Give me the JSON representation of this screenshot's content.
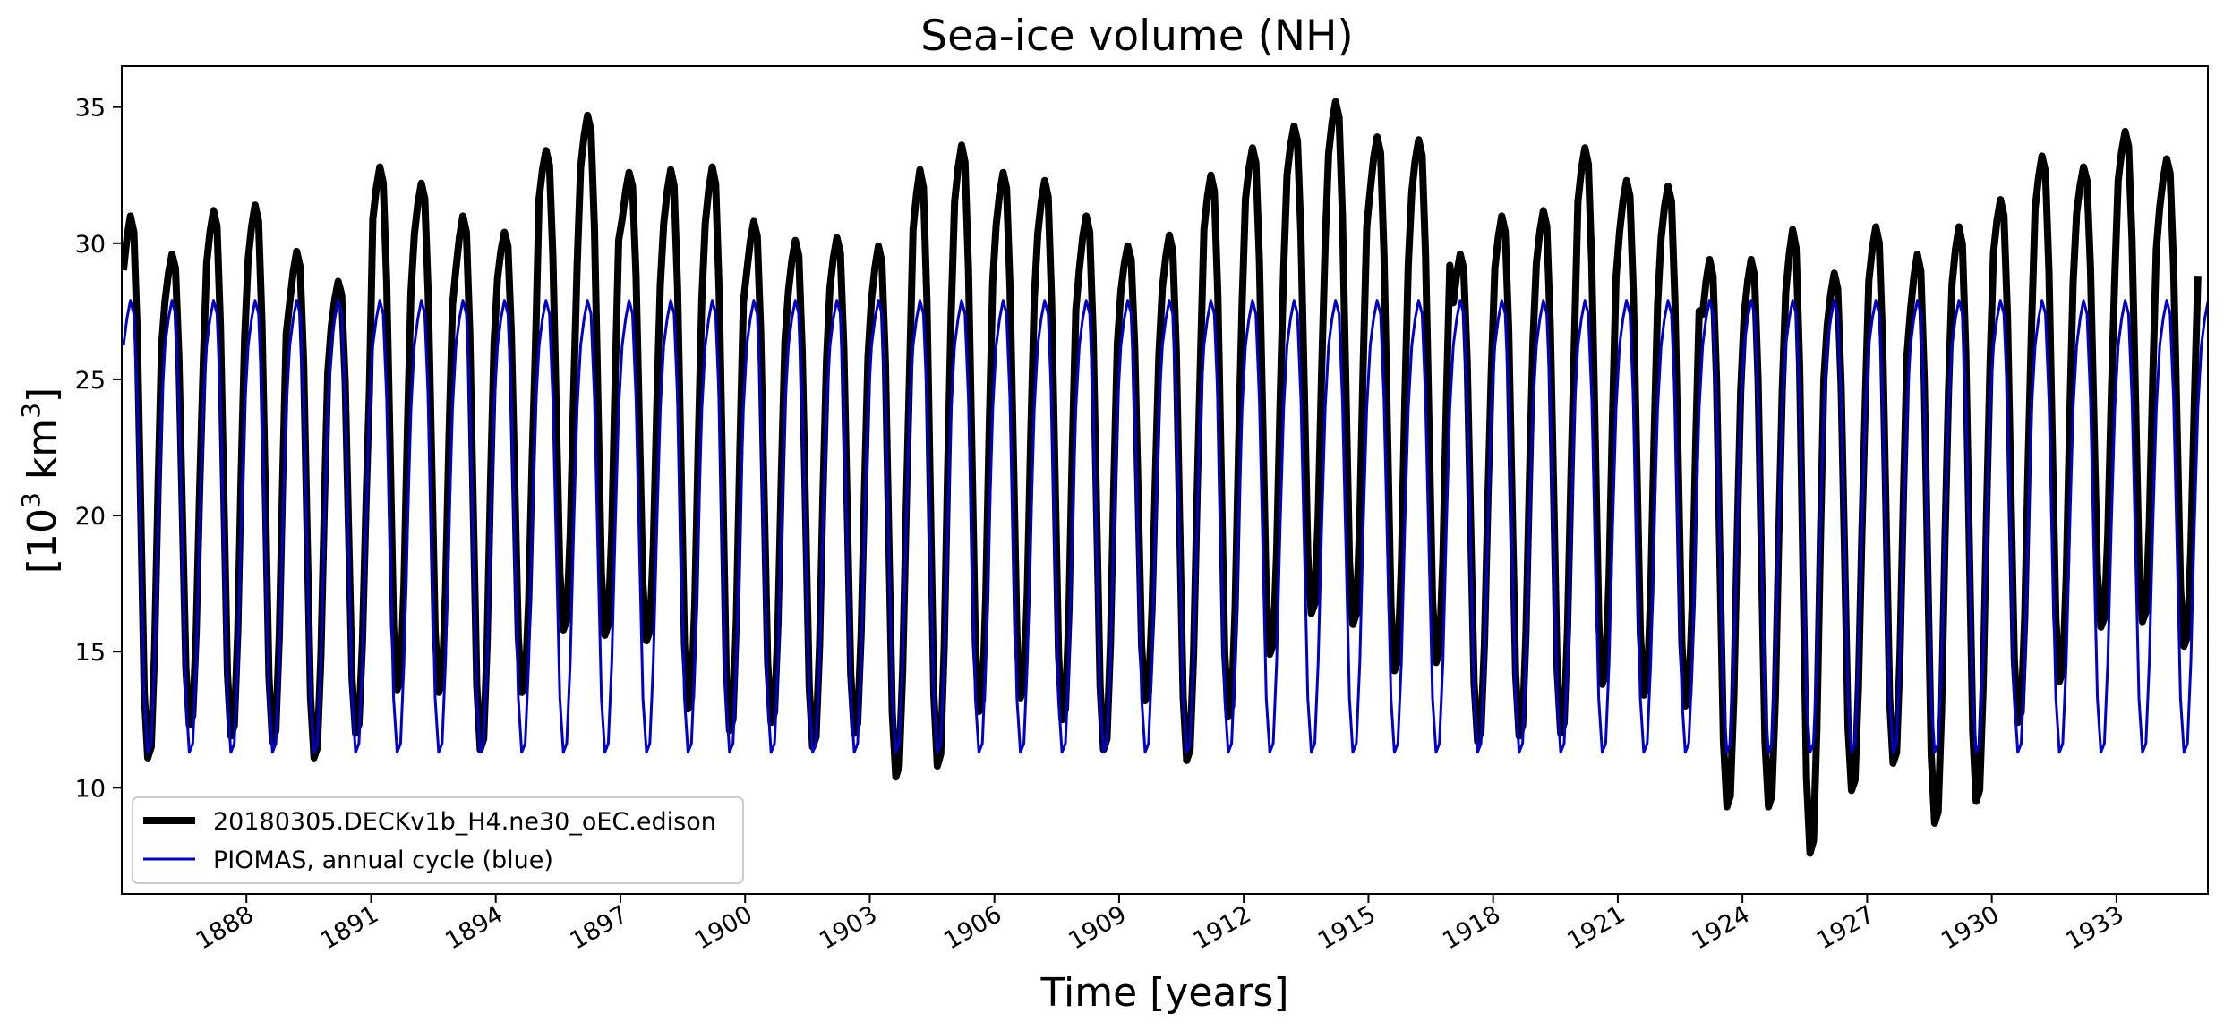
{
  "chart_data": {
    "type": "line",
    "title": "Sea-ice volume (NH)",
    "xlabel": "Time [years]",
    "ylabel": "[10³ km³]",
    "ylabel_parts": {
      "open": "[10",
      "exp1": "3",
      "mid": " km",
      "exp2": "3",
      "close": "]"
    },
    "xlim": [
      1885.0,
      1935.2
    ],
    "ylim": [
      6.1,
      36.5
    ],
    "xticks": [
      1888,
      1891,
      1894,
      1897,
      1900,
      1903,
      1906,
      1909,
      1912,
      1915,
      1918,
      1921,
      1924,
      1927,
      1930,
      1933
    ],
    "xtick_labels": [
      "1888",
      "1891",
      "1894",
      "1897",
      "1900",
      "1903",
      "1906",
      "1909",
      "1912",
      "1915",
      "1918",
      "1921",
      "1924",
      "1927",
      "1930",
      "1933"
    ],
    "yticks": [
      10,
      15,
      20,
      25,
      30,
      35
    ],
    "ytick_labels": [
      "10",
      "15",
      "20",
      "25",
      "30",
      "35"
    ],
    "grid": false,
    "legend_position": "lower-left",
    "series": [
      {
        "name": "20180305.DECKv1b_H4.ne30_oEC.edison",
        "color": "#000000",
        "style": "thick",
        "annual_max": [
          31.0,
          29.6,
          31.2,
          31.4,
          29.7,
          28.6,
          32.8,
          32.2,
          31.0,
          30.4,
          33.4,
          34.7,
          32.6,
          32.7,
          32.8,
          30.8,
          30.1,
          30.2,
          29.9,
          32.7,
          33.6,
          32.6,
          32.3,
          31.0,
          29.9,
          30.3,
          32.5,
          33.5,
          34.3,
          35.2,
          33.9,
          33.8,
          29.6,
          31.0,
          31.2,
          33.5,
          32.3,
          32.1,
          29.4,
          29.4,
          30.5,
          28.9,
          30.6,
          29.6,
          30.6,
          31.6,
          33.2,
          32.8,
          34.1,
          33.1
        ],
        "annual_min": [
          11.1,
          12.3,
          11.9,
          11.7,
          11.1,
          12.0,
          13.6,
          13.5,
          11.4,
          13.5,
          15.8,
          15.6,
          15.4,
          12.9,
          12.1,
          12.4,
          11.5,
          12.0,
          10.4,
          10.8,
          12.8,
          13.3,
          12.5,
          11.4,
          13.2,
          11.0,
          12.6,
          14.9,
          16.4,
          16.0,
          14.3,
          14.6,
          11.7,
          11.9,
          12.0,
          13.8,
          13.4,
          13.0,
          9.3,
          9.3,
          7.6,
          9.9,
          10.9,
          8.7,
          9.5,
          12.4,
          13.9,
          15.9,
          16.1,
          15.2
        ]
      },
      {
        "name": "PIOMAS, annual cycle (blue)",
        "color": "#0000cc",
        "style": "thin",
        "annual_max": 27.9,
        "annual_min": 11.3
      }
    ]
  }
}
